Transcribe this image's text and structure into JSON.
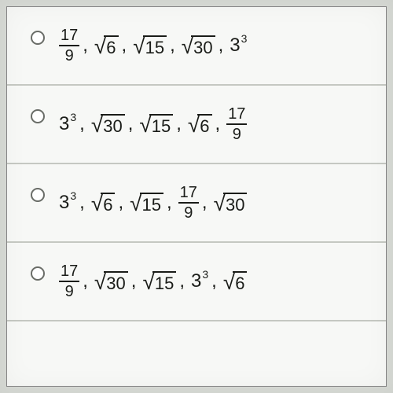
{
  "style": {
    "background_color": "#d8dbd6",
    "panel_background": "#f7f8f6",
    "divider_color": "#c5c8c2",
    "text_color": "#1a1c18",
    "radio_border": "#6a6d68",
    "font_family": "Arial",
    "math_fontsize": 24,
    "fraction_fontsize": 20,
    "radicand_fontsize": 22,
    "exponent_fontsize": 14
  },
  "question_type": "multiple-choice-ordering",
  "options": [
    {
      "selected": false,
      "terms": [
        {
          "type": "fraction",
          "numerator": "17",
          "denominator": "9"
        },
        {
          "type": "sqrt",
          "radicand": "6"
        },
        {
          "type": "sqrt",
          "radicand": "15"
        },
        {
          "type": "sqrt",
          "radicand": "30"
        },
        {
          "type": "power",
          "base": "3",
          "exponent": "3"
        }
      ]
    },
    {
      "selected": false,
      "terms": [
        {
          "type": "power",
          "base": "3",
          "exponent": "3"
        },
        {
          "type": "sqrt",
          "radicand": "30"
        },
        {
          "type": "sqrt",
          "radicand": "15"
        },
        {
          "type": "sqrt",
          "radicand": "6"
        },
        {
          "type": "fraction",
          "numerator": "17",
          "denominator": "9"
        }
      ]
    },
    {
      "selected": false,
      "terms": [
        {
          "type": "power",
          "base": "3",
          "exponent": "3"
        },
        {
          "type": "sqrt",
          "radicand": "6"
        },
        {
          "type": "sqrt",
          "radicand": "15"
        },
        {
          "type": "fraction",
          "numerator": "17",
          "denominator": "9"
        },
        {
          "type": "sqrt",
          "radicand": "30"
        }
      ]
    },
    {
      "selected": false,
      "terms": [
        {
          "type": "fraction",
          "numerator": "17",
          "denominator": "9"
        },
        {
          "type": "sqrt",
          "radicand": "30"
        },
        {
          "type": "sqrt",
          "radicand": "15"
        },
        {
          "type": "power",
          "base": "3",
          "exponent": "3"
        },
        {
          "type": "sqrt",
          "radicand": "6"
        }
      ]
    }
  ]
}
